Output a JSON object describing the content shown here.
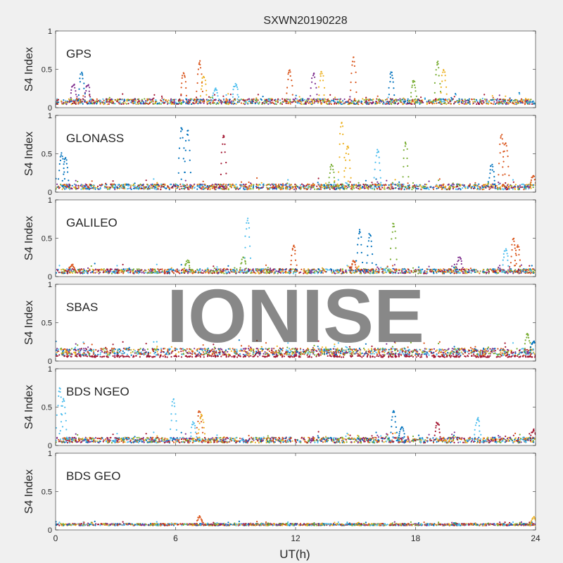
{
  "chart_data": {
    "type": "scatter",
    "title": "SXWN20190228",
    "xlabel": "UT(h)",
    "ylabel": "S4 Index",
    "xlim": [
      0,
      24
    ],
    "ylim": [
      0,
      1
    ],
    "xticks": [
      "0",
      "6",
      "12",
      "18",
      "24"
    ],
    "yticks": [
      "0",
      "0.5",
      "1"
    ],
    "watermark": "IONISE",
    "grid": false,
    "series_colors": [
      "#0072BD",
      "#D95319",
      "#EDB120",
      "#7E2F8E",
      "#77AC30",
      "#4DBEEE",
      "#A2142F"
    ],
    "panels": [
      {
        "name": "GPS",
        "baseline": {
          "level": 0.08,
          "spread": 0.035
        },
        "spikes": [
          [
            0.9,
            0.3,
            3
          ],
          [
            1.3,
            0.45,
            0
          ],
          [
            1.6,
            0.3,
            3
          ],
          [
            6.4,
            0.45,
            1
          ],
          [
            7.2,
            0.6,
            1
          ],
          [
            7.4,
            0.4,
            2
          ],
          [
            8.0,
            0.25,
            5
          ],
          [
            9.0,
            0.3,
            5
          ],
          [
            11.7,
            0.5,
            1
          ],
          [
            12.9,
            0.45,
            3
          ],
          [
            13.3,
            0.48,
            2
          ],
          [
            14.9,
            0.65,
            1
          ],
          [
            16.8,
            0.45,
            0
          ],
          [
            17.9,
            0.35,
            4
          ],
          [
            19.1,
            0.6,
            4
          ],
          [
            19.4,
            0.5,
            2
          ]
        ]
      },
      {
        "name": "GLONASS",
        "baseline": {
          "level": 0.07,
          "spread": 0.035
        },
        "spikes": [
          [
            0.3,
            0.5,
            0
          ],
          [
            0.5,
            0.45,
            0
          ],
          [
            6.3,
            0.85,
            0
          ],
          [
            6.6,
            0.8,
            0
          ],
          [
            8.4,
            0.75,
            6
          ],
          [
            13.8,
            0.35,
            4
          ],
          [
            14.3,
            0.9,
            2
          ],
          [
            14.6,
            0.6,
            2
          ],
          [
            16.1,
            0.55,
            5
          ],
          [
            17.5,
            0.65,
            4
          ],
          [
            21.8,
            0.35,
            0
          ],
          [
            22.3,
            0.75,
            1
          ],
          [
            22.5,
            0.65,
            1
          ],
          [
            23.9,
            0.2,
            1
          ]
        ]
      },
      {
        "name": "GALILEO",
        "baseline": {
          "level": 0.07,
          "spread": 0.03
        },
        "spikes": [
          [
            0.8,
            0.15,
            1
          ],
          [
            6.6,
            0.2,
            4
          ],
          [
            9.4,
            0.25,
            4
          ],
          [
            9.6,
            0.75,
            5
          ],
          [
            11.9,
            0.4,
            1
          ],
          [
            14.9,
            0.2,
            1
          ],
          [
            15.2,
            0.6,
            0
          ],
          [
            15.7,
            0.55,
            0
          ],
          [
            16.9,
            0.7,
            4
          ],
          [
            20.2,
            0.25,
            3
          ],
          [
            22.5,
            0.35,
            5
          ],
          [
            22.9,
            0.5,
            1
          ],
          [
            23.1,
            0.4,
            1
          ]
        ]
      },
      {
        "name": "SBAS",
        "baseline": {
          "level": 0.12,
          "spread": 0.045
        },
        "spikes": [
          [
            23.6,
            0.35,
            4
          ],
          [
            23.9,
            0.25,
            0
          ]
        ]
      },
      {
        "name": "BDS NGEO",
        "baseline": {
          "level": 0.07,
          "spread": 0.035
        },
        "spikes": [
          [
            0.2,
            0.75,
            5
          ],
          [
            0.4,
            0.6,
            5
          ],
          [
            5.9,
            0.6,
            5
          ],
          [
            6.9,
            0.3,
            5
          ],
          [
            7.2,
            0.45,
            1
          ],
          [
            7.3,
            0.4,
            2
          ],
          [
            16.9,
            0.45,
            0
          ],
          [
            17.3,
            0.25,
            0
          ],
          [
            19.1,
            0.3,
            6
          ],
          [
            21.1,
            0.35,
            5
          ],
          [
            23.9,
            0.2,
            6
          ]
        ]
      },
      {
        "name": "BDS GEO",
        "baseline": {
          "level": 0.07,
          "spread": 0.012
        },
        "spikes": [
          [
            7.2,
            0.17,
            1
          ],
          [
            23.9,
            0.16,
            2
          ]
        ]
      }
    ]
  }
}
